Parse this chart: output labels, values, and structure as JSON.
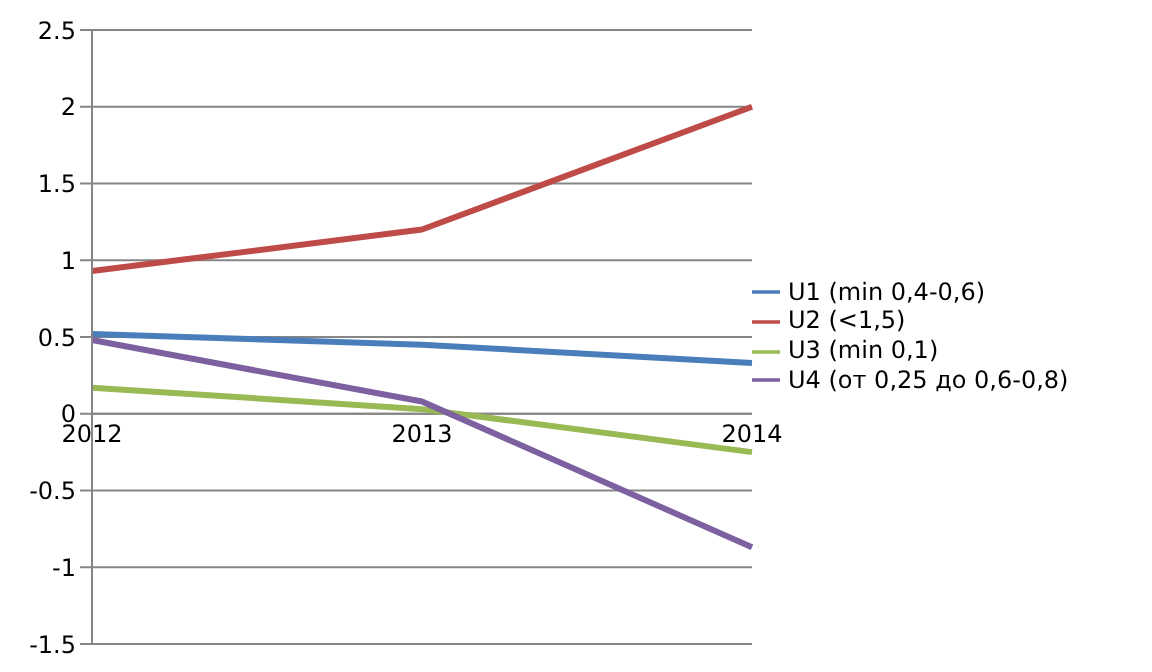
{
  "chart_data": {
    "type": "line",
    "categories": [
      "2012",
      "2013",
      "2014"
    ],
    "series": [
      {
        "name": "U1 (min 0,4-0,6)",
        "color": "#4a7ebb",
        "values": [
          0.52,
          0.45,
          0.33
        ]
      },
      {
        "name": "U2 (<1,5)",
        "color": "#be4b48",
        "values": [
          0.93,
          1.2,
          2.0
        ]
      },
      {
        "name": "U3 (min 0,1)",
        "color": "#98b954",
        "values": [
          0.17,
          0.03,
          -0.25
        ]
      },
      {
        "name": "U4 (от 0,25 до 0,6-0,8)",
        "color": "#7d60a0",
        "values": [
          0.48,
          0.08,
          -0.87
        ]
      }
    ],
    "ylim": [
      -1.5,
      2.5
    ],
    "yticks": [
      -1.5,
      -1,
      -0.5,
      0,
      0.5,
      1,
      1.5,
      2,
      2.5
    ],
    "grid": "y",
    "legend": "right",
    "marker": "none"
  }
}
